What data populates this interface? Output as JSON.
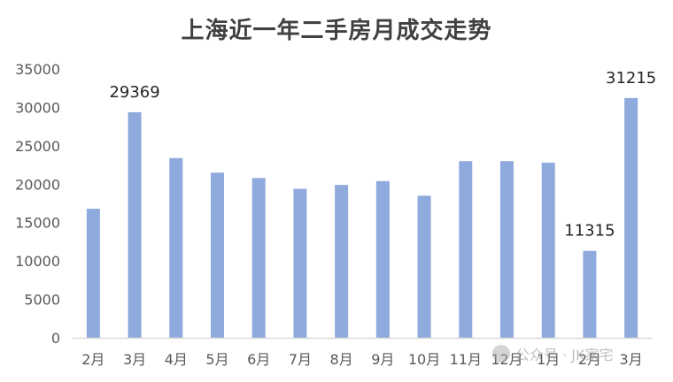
{
  "chart_data": {
    "type": "bar",
    "title": "上海近一年二手房月成交走势",
    "categories": [
      "2月",
      "3月",
      "4月",
      "5月",
      "6月",
      "7月",
      "8月",
      "9月",
      "10月",
      "11月",
      "12月",
      "1月",
      "2月",
      "3月"
    ],
    "values": [
      16800,
      29369,
      23400,
      21500,
      20800,
      19400,
      19900,
      20400,
      18500,
      23000,
      23000,
      22800,
      11315,
      31215
    ],
    "data_labels": [
      {
        "index": 1,
        "text": "29369"
      },
      {
        "index": 12,
        "text": "11315"
      },
      {
        "index": 13,
        "text": "31215"
      }
    ],
    "yticks": [
      "0",
      "5000",
      "10000",
      "15000",
      "20000",
      "25000",
      "30000",
      "35000"
    ],
    "ylim": [
      0,
      35000
    ],
    "xlabel": "",
    "ylabel": "",
    "grid": false,
    "legend": "none",
    "bar_color": "#8faadc",
    "axis_color": "#d9d9d9"
  },
  "watermark": {
    "text": "公众号 · JK家宅",
    "icon": "wechat-icon"
  }
}
